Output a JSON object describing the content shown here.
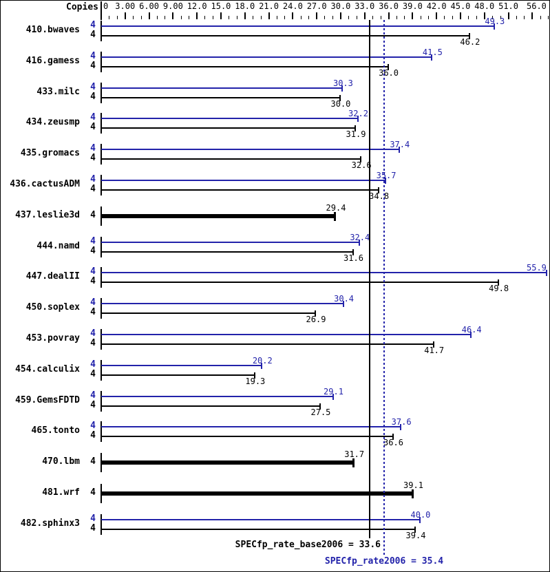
{
  "chart_data": {
    "type": "bar",
    "orientation": "horizontal",
    "copies_header": "Copies",
    "colors": {
      "peak": "#2222aa",
      "base": "#000000"
    },
    "x_axis": {
      "min": 0,
      "max": 56,
      "minor_tick_step": 1,
      "major_tick_step": 3,
      "ticks": [
        {
          "v": 0,
          "label": "0"
        },
        {
          "v": 3,
          "label": "3.00"
        },
        {
          "v": 6,
          "label": "6.00"
        },
        {
          "v": 9,
          "label": "9.00"
        },
        {
          "v": 12,
          "label": "12.0"
        },
        {
          "v": 15,
          "label": "15.0"
        },
        {
          "v": 18,
          "label": "18.0"
        },
        {
          "v": 21,
          "label": "21.0"
        },
        {
          "v": 24,
          "label": "24.0"
        },
        {
          "v": 27,
          "label": "27.0"
        },
        {
          "v": 30,
          "label": "30.0"
        },
        {
          "v": 33,
          "label": "33.0"
        },
        {
          "v": 36,
          "label": "36.0"
        },
        {
          "v": 39,
          "label": "39.0"
        },
        {
          "v": 42,
          "label": "42.0"
        },
        {
          "v": 45,
          "label": "45.0"
        },
        {
          "v": 48,
          "label": "48.0"
        },
        {
          "v": 51,
          "label": "51.0"
        },
        {
          "v": 56,
          "label": "56.0"
        }
      ]
    },
    "benchmarks": [
      {
        "name": "410.bwaves",
        "peak_copies": "4",
        "base_copies": "4",
        "peak": 49.3,
        "peak_label": "49.3",
        "base": 46.2,
        "base_label": "46.2"
      },
      {
        "name": "416.gamess",
        "peak_copies": "4",
        "base_copies": "4",
        "peak": 41.5,
        "peak_label": "41.5",
        "base": 36.0,
        "base_label": "36.0"
      },
      {
        "name": "433.milc",
        "peak_copies": "4",
        "base_copies": "4",
        "peak": 30.3,
        "peak_label": "30.3",
        "base": 30.0,
        "base_label": "30.0"
      },
      {
        "name": "434.zeusmp",
        "peak_copies": "4",
        "base_copies": "4",
        "peak": 32.2,
        "peak_label": "32.2",
        "base": 31.9,
        "base_label": "31.9"
      },
      {
        "name": "435.gromacs",
        "peak_copies": "4",
        "base_copies": "4",
        "peak": 37.4,
        "peak_label": "37.4",
        "base": 32.6,
        "base_label": "32.6"
      },
      {
        "name": "436.cactusADM",
        "peak_copies": "4",
        "base_copies": "4",
        "peak": 35.7,
        "peak_label": "35.7",
        "base": 34.8,
        "base_label": "34.8"
      },
      {
        "name": "437.leslie3d",
        "base_copies": "4",
        "base": 29.4,
        "base_label": "29.4"
      },
      {
        "name": "444.namd",
        "peak_copies": "4",
        "base_copies": "4",
        "peak": 32.4,
        "peak_label": "32.4",
        "base": 31.6,
        "base_label": "31.6"
      },
      {
        "name": "447.dealII",
        "peak_copies": "4",
        "base_copies": "4",
        "peak": 55.9,
        "peak_label": "55.9",
        "base": 49.8,
        "base_label": "49.8"
      },
      {
        "name": "450.soplex",
        "peak_copies": "4",
        "base_copies": "4",
        "peak": 30.4,
        "peak_label": "30.4",
        "base": 26.9,
        "base_label": "26.9"
      },
      {
        "name": "453.povray",
        "peak_copies": "4",
        "base_copies": "4",
        "peak": 46.4,
        "peak_label": "46.4",
        "base": 41.7,
        "base_label": "41.7"
      },
      {
        "name": "454.calculix",
        "peak_copies": "4",
        "base_copies": "4",
        "peak": 20.2,
        "peak_label": "20.2",
        "base": 19.3,
        "base_label": "19.3"
      },
      {
        "name": "459.GemsFDTD",
        "peak_copies": "4",
        "base_copies": "4",
        "peak": 29.1,
        "peak_label": "29.1",
        "base": 27.5,
        "base_label": "27.5"
      },
      {
        "name": "465.tonto",
        "peak_copies": "4",
        "base_copies": "4",
        "peak": 37.6,
        "peak_label": "37.6",
        "base": 36.6,
        "base_label": "36.6"
      },
      {
        "name": "470.lbm",
        "base_copies": "4",
        "base": 31.7,
        "base_label": "31.7"
      },
      {
        "name": "481.wrf",
        "base_copies": "4",
        "base": 39.1,
        "base_label": "39.1"
      },
      {
        "name": "482.sphinx3",
        "peak_copies": "4",
        "base_copies": "4",
        "peak": 40.0,
        "peak_label": "40.0",
        "base": 39.4,
        "base_label": "39.4"
      }
    ],
    "reference_lines": [
      {
        "name": "SPECfp_rate_base2006",
        "value": 33.6,
        "label": "SPECfp_rate_base2006 = 33.6",
        "style": "solid",
        "color": "#000000"
      },
      {
        "name": "SPECfp_rate2006",
        "value": 35.4,
        "label": "SPECfp_rate2006 = 35.4",
        "style": "dotted",
        "color": "#2222aa"
      }
    ]
  }
}
